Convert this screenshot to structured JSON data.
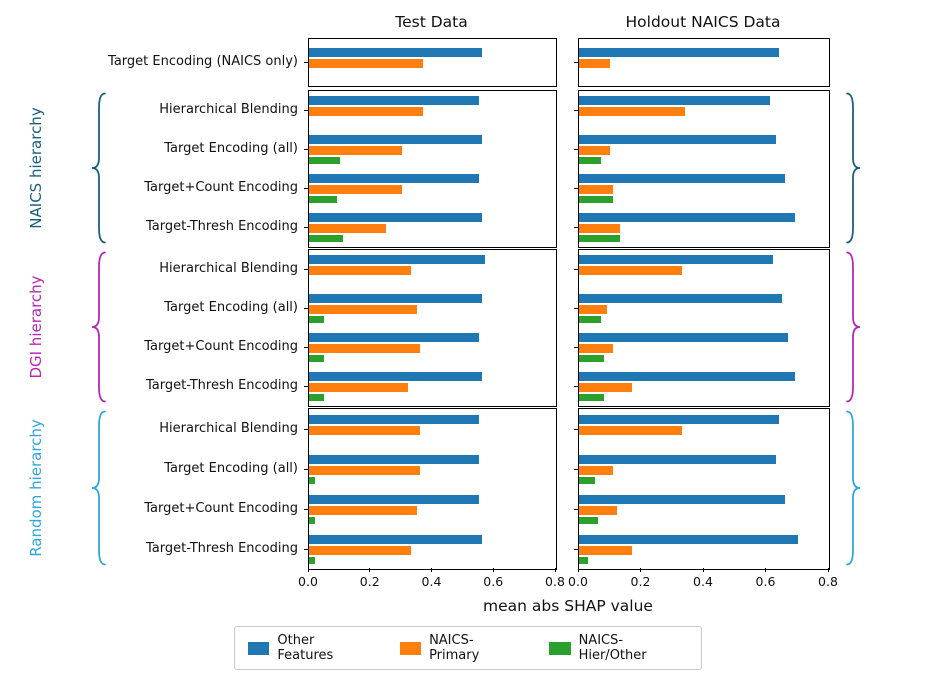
{
  "chart_data": {
    "type": "bar",
    "orientation": "horizontal",
    "xlabel": "mean abs SHAP value",
    "xlim": [
      0.0,
      0.8
    ],
    "x_ticks": [
      "0.0",
      "0.2",
      "0.4",
      "0.6",
      "0.8"
    ],
    "columns": [
      "Test Data",
      "Holdout NAICS Data"
    ],
    "legend": [
      {
        "label": "Other Features",
        "color": "#1f77b4"
      },
      {
        "label": "NAICS-Primary",
        "color": "#ff7f0e"
      },
      {
        "label": "NAICS-Hier/Other",
        "color": "#2ca02c"
      }
    ],
    "series_note": "row value arrays are ordered [Other Features, NAICS-Primary, NAICS-Hier/Other]; null = bar not present",
    "groups": [
      {
        "name": "",
        "label_color": "",
        "rows": [
          {
            "label": "Target Encoding (NAICS only)",
            "test": [
              0.56,
              0.37,
              null
            ],
            "holdout": [
              0.64,
              0.1,
              null
            ]
          }
        ]
      },
      {
        "name": "NAICS hierarchy",
        "label_color": "#19607f",
        "rows": [
          {
            "label": "Hierarchical Blending",
            "test": [
              0.55,
              0.37,
              null
            ],
            "holdout": [
              0.61,
              0.34,
              null
            ]
          },
          {
            "label": "Target Encoding (all)",
            "test": [
              0.56,
              0.3,
              0.1
            ],
            "holdout": [
              0.63,
              0.1,
              0.07
            ]
          },
          {
            "label": "Target+Count Encoding",
            "test": [
              0.55,
              0.3,
              0.09
            ],
            "holdout": [
              0.66,
              0.11,
              0.11
            ]
          },
          {
            "label": "Target-Thresh Encoding",
            "test": [
              0.56,
              0.25,
              0.11
            ],
            "holdout": [
              0.69,
              0.13,
              0.13
            ]
          }
        ]
      },
      {
        "name": "DGI hierarchy",
        "label_color": "#b429b3",
        "rows": [
          {
            "label": "Hierarchical Blending",
            "test": [
              0.57,
              0.33,
              null
            ],
            "holdout": [
              0.62,
              0.33,
              null
            ]
          },
          {
            "label": "Target Encoding (all)",
            "test": [
              0.56,
              0.35,
              0.05
            ],
            "holdout": [
              0.65,
              0.09,
              0.07
            ]
          },
          {
            "label": "Target+Count Encoding",
            "test": [
              0.55,
              0.36,
              0.05
            ],
            "holdout": [
              0.67,
              0.11,
              0.08
            ]
          },
          {
            "label": "Target-Thresh Encoding",
            "test": [
              0.56,
              0.32,
              0.05
            ],
            "holdout": [
              0.69,
              0.17,
              0.08
            ]
          }
        ]
      },
      {
        "name": "Random hierarchy",
        "label_color": "#2fa7de",
        "rows": [
          {
            "label": "Hierarchical Blending",
            "test": [
              0.55,
              0.36,
              null
            ],
            "holdout": [
              0.64,
              0.33,
              null
            ]
          },
          {
            "label": "Target Encoding (all)",
            "test": [
              0.55,
              0.36,
              0.02
            ],
            "holdout": [
              0.63,
              0.11,
              0.05
            ]
          },
          {
            "label": "Target+Count Encoding",
            "test": [
              0.55,
              0.35,
              0.02
            ],
            "holdout": [
              0.66,
              0.12,
              0.06
            ]
          },
          {
            "label": "Target-Thresh Encoding",
            "test": [
              0.56,
              0.33,
              0.02
            ],
            "holdout": [
              0.7,
              0.17,
              0.03
            ]
          }
        ]
      }
    ]
  }
}
